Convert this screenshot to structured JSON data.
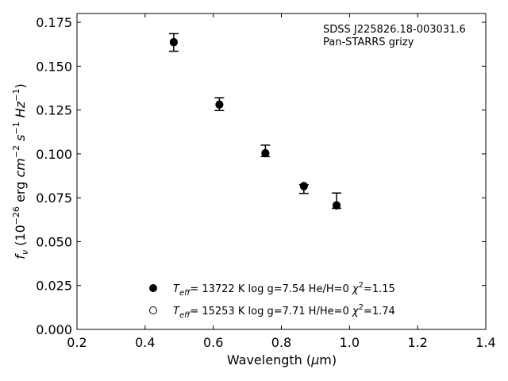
{
  "chart_data": {
    "type": "scatter",
    "title": "",
    "annotation": [
      "SDSS J225826.18-003031.6",
      "Pan-STARRS grizy"
    ],
    "xlabel": "Wavelength (μm)",
    "ylabel": "f_ν (10^-26 erg cm^-2 s^-1 Hz^-1)",
    "xlim": [
      0.2,
      1.4
    ],
    "ylim": [
      0.0,
      0.18
    ],
    "x_ticks": [
      0.2,
      0.4,
      0.6,
      0.8,
      1.0,
      1.2,
      1.4
    ],
    "x_tick_labels": [
      "0.2",
      "0.4",
      "0.6",
      "0.8",
      "1.0",
      "1.2",
      "1.4"
    ],
    "y_ticks": [
      0.0,
      0.025,
      0.05,
      0.075,
      0.1,
      0.125,
      0.15,
      0.175
    ],
    "y_tick_labels": [
      "0.000",
      "0.025",
      "0.050",
      "0.075",
      "0.100",
      "0.125",
      "0.150",
      "0.175"
    ],
    "grid": false,
    "legend_position": "bottom-center",
    "observed": {
      "x": [
        0.484,
        0.618,
        0.753,
        0.866,
        0.962
      ],
      "y": [
        0.1635,
        0.1282,
        0.1003,
        0.081,
        0.0706
      ],
      "yerr_lo": [
        0.1585,
        0.1247,
        0.0985,
        0.0775,
        0.069
      ],
      "yerr_hi": [
        0.1685,
        0.132,
        0.105,
        0.0825,
        0.0777
      ]
    },
    "series": [
      {
        "marker": "filled",
        "label": "T_eff= 13722 K  log g=7.54  He/H=0  χ²=1.15",
        "x": [
          0.484,
          0.618,
          0.753,
          0.866,
          0.962
        ],
        "y": [
          0.1635,
          0.1282,
          0.1003,
          0.0815,
          0.0705
        ]
      },
      {
        "marker": "open",
        "label": "T_eff= 15253 K  log g=7.71  H/He=0  χ²=1.74",
        "x": [
          0.484,
          0.618,
          0.753,
          0.866,
          0.962
        ],
        "y": [
          0.1638,
          0.128,
          0.1005,
          0.0818,
          0.0708
        ]
      }
    ]
  }
}
